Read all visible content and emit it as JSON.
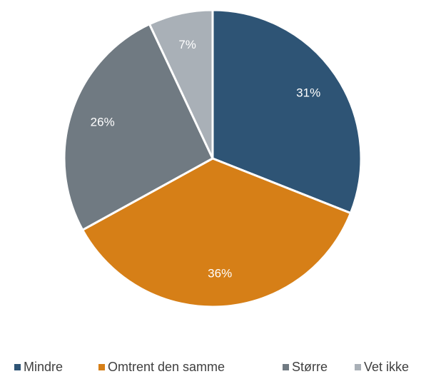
{
  "chart_data": {
    "type": "pie",
    "categories": [
      "Mindre",
      "Omtrent den samme",
      "Større",
      "Vet ikke"
    ],
    "values": [
      31,
      36,
      26,
      7
    ],
    "value_labels": [
      "31%",
      "36%",
      "26%",
      "7%"
    ],
    "colors": [
      "#2e5475",
      "#d67f17",
      "#707a82",
      "#a9b0b7"
    ],
    "legend": "bottom"
  }
}
